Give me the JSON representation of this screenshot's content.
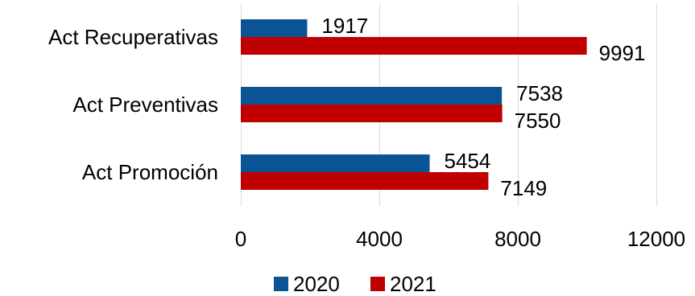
{
  "chart_data": {
    "type": "bar",
    "orientation": "horizontal",
    "categories": [
      "Act Recuperativas",
      "Act Preventivas",
      "Act Promoción"
    ],
    "series": [
      {
        "name": "2020",
        "values": [
          1917,
          7538,
          5454
        ],
        "color": "#0a5394"
      },
      {
        "name": "2021",
        "values": [
          9991,
          7550,
          7149
        ],
        "color": "#c00000"
      }
    ],
    "xlim": [
      0,
      12000
    ],
    "xticks": [
      0,
      4000,
      8000,
      12000
    ],
    "title": "",
    "xlabel": "",
    "ylabel": "",
    "grid": true,
    "legend_position": "bottom"
  }
}
